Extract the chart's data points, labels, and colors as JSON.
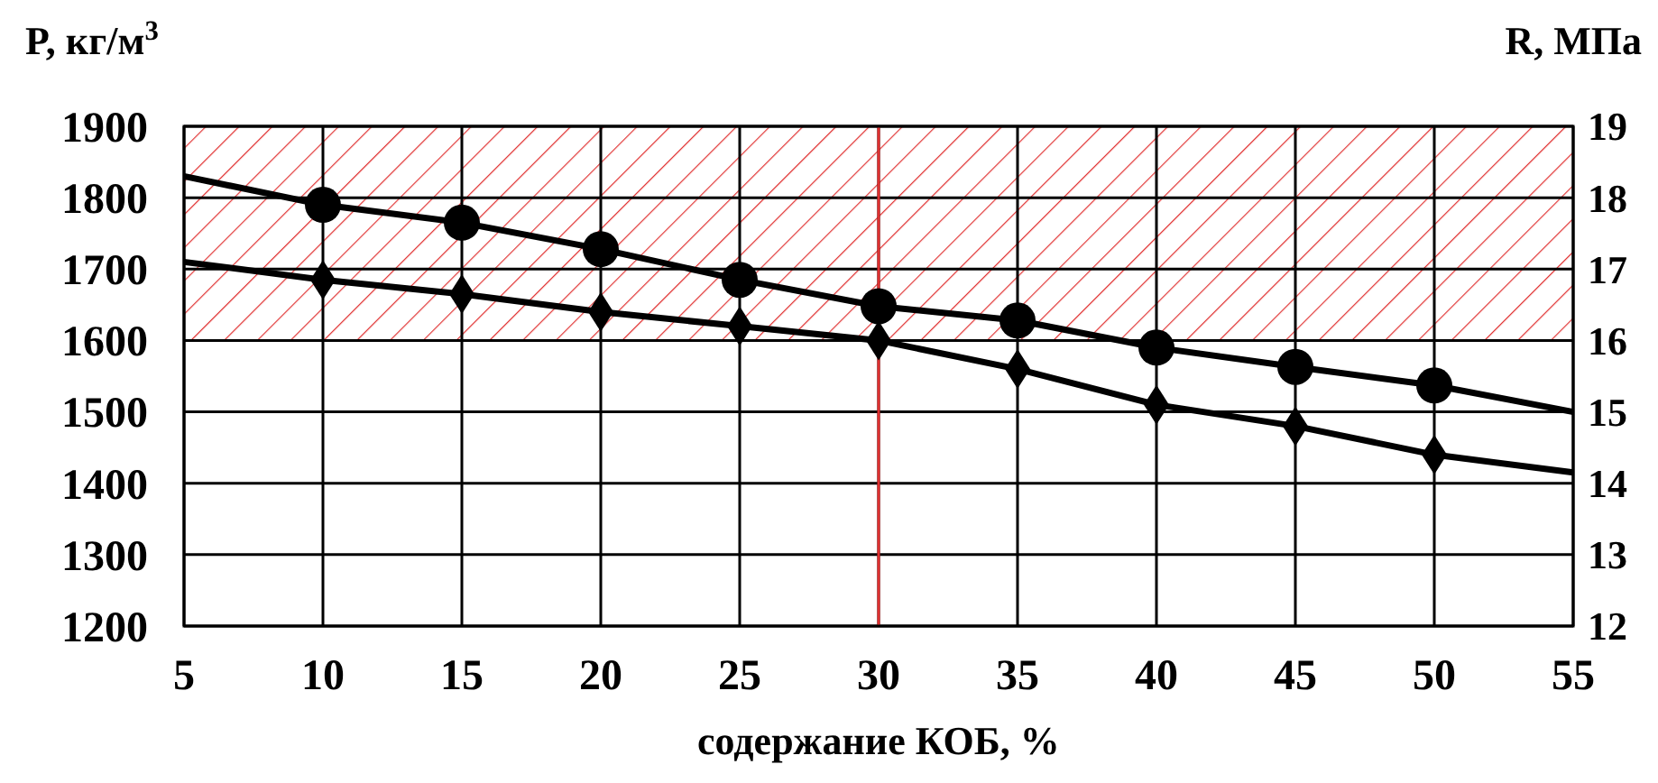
{
  "chart_data": {
    "type": "line",
    "xlabel": "содержание КОБ, %",
    "ylabel": "P, кг/м$^{3}$",
    "y2label": "R, МПа",
    "xlim": [
      5,
      55
    ],
    "xticks": [
      5,
      10,
      15,
      20,
      25,
      30,
      35,
      40,
      45,
      50,
      55
    ],
    "ylim": [
      1200,
      1900
    ],
    "yticks": [
      1200,
      1300,
      1400,
      1500,
      1600,
      1700,
      1800,
      1900
    ],
    "y2lim": [
      12,
      19
    ],
    "y2ticks": [
      12,
      13,
      14,
      15,
      16,
      17,
      18,
      19
    ],
    "grid": true,
    "bands": [
      {
        "axis": "y",
        "from": 1600,
        "to": 1900,
        "color": "#e03030"
      }
    ],
    "ref_lines": [
      {
        "axis": "x",
        "value": 30,
        "color": "#e03030"
      }
    ],
    "series": [
      {
        "color": "#000000",
        "marker": "none",
        "x": [
          5,
          10,
          15,
          20,
          25,
          30,
          35,
          40,
          45,
          50,
          55
        ],
        "values": [
          1830,
          1790,
          1765,
          1728,
          1685,
          1648,
          1628,
          1590,
          1563,
          1537,
          1500
        ]
      },
      {
        "type": "scatter",
        "color": "#000000",
        "marker": "circle",
        "x": [
          10,
          15,
          20,
          25,
          30,
          35,
          40,
          45,
          50
        ],
        "values": [
          1790,
          1765,
          1728,
          1685,
          1648,
          1628,
          1590,
          1563,
          1537
        ]
      },
      {
        "color": "#000000",
        "marker": "none",
        "axis": "y2",
        "x": [
          5,
          10,
          15,
          20,
          25,
          30,
          35,
          40,
          45,
          50,
          55
        ],
        "values": [
          17.1,
          16.85,
          16.65,
          16.4,
          16.2,
          16.0,
          15.6,
          15.1,
          14.8,
          14.4,
          14.15
        ]
      },
      {
        "type": "scatter",
        "color": "#000000",
        "marker": "diamond",
        "axis": "y2",
        "x": [
          10,
          15,
          20,
          25,
          30,
          35,
          40,
          45,
          50
        ],
        "values": [
          16.85,
          16.65,
          16.4,
          16.2,
          16.0,
          15.6,
          15.1,
          14.8,
          14.4
        ]
      }
    ]
  }
}
